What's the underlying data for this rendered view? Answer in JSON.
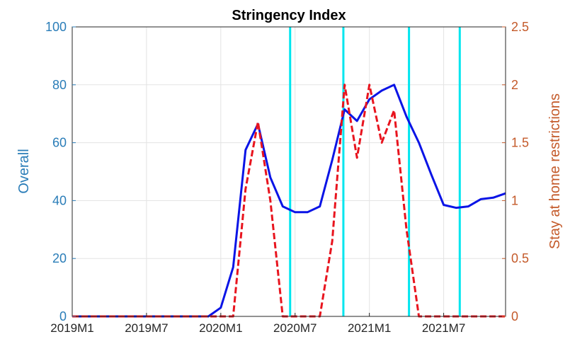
{
  "chart_data": {
    "type": "line",
    "title": "Stringency Index",
    "ylabel_left": "Overall",
    "ylabel_right": "Stay at home restrictions",
    "ylim_left": [
      0,
      100
    ],
    "ylim_right": [
      0,
      2.5
    ],
    "yticks_left": [
      "0",
      "20",
      "40",
      "60",
      "80",
      "100"
    ],
    "yticks_right": [
      "0",
      "0.5",
      "1",
      "1.5",
      "2",
      "2.5"
    ],
    "xtick_labels": [
      "2019M1",
      "2019M7",
      "2020M1",
      "2020M7",
      "2021M1",
      "2021M7"
    ],
    "xtick_months": [
      0,
      6,
      12,
      18,
      24,
      30
    ],
    "x_range_months": [
      0,
      35
    ],
    "grid": true,
    "colors": {
      "overall": "#0a14e6",
      "stay_home": "#e8141e",
      "vlines": "#00e6ef",
      "left_axis": "#2a7db8",
      "right_axis": "#c45a2a",
      "grid": "#e3e3e3"
    },
    "series": [
      {
        "axis": "left",
        "style": "solid",
        "x_months": [
          0,
          1,
          2,
          3,
          4,
          5,
          6,
          7,
          8,
          9,
          10,
          11,
          12,
          13,
          14,
          15,
          16,
          17,
          18,
          19,
          20,
          21,
          22,
          23,
          24,
          25,
          26,
          27,
          28,
          29,
          30,
          31,
          32,
          33,
          34,
          35
        ],
        "values": [
          0,
          0,
          0,
          0,
          0,
          0,
          0,
          0,
          0,
          0,
          0,
          0,
          3,
          17,
          57.5,
          66.5,
          48,
          38,
          36,
          36,
          38,
          54,
          71.5,
          67.5,
          75,
          78,
          80,
          69,
          60,
          49,
          38.5,
          37.5,
          38,
          40.5,
          41,
          42.5
        ]
      },
      {
        "axis": "right",
        "style": "dashed",
        "x_months": [
          0,
          1,
          2,
          3,
          4,
          5,
          6,
          7,
          8,
          9,
          10,
          11,
          12,
          13,
          14,
          15,
          16,
          17,
          18,
          19,
          20,
          21,
          22,
          23,
          24,
          25,
          26,
          27,
          28,
          29,
          30,
          31,
          32,
          33,
          34,
          35
        ],
        "values": [
          0,
          0,
          0,
          0,
          0,
          0,
          0,
          0,
          0,
          0,
          0,
          0,
          0,
          0,
          1.1,
          1.68,
          1.0,
          0,
          0,
          0,
          0,
          0.65,
          2.0,
          1.37,
          2.0,
          1.5,
          1.78,
          0.75,
          0,
          0,
          0,
          0,
          0,
          0,
          0,
          0
        ]
      }
    ],
    "vertical_lines_months": [
      17.6,
      21.9,
      27.2,
      31.3
    ]
  }
}
